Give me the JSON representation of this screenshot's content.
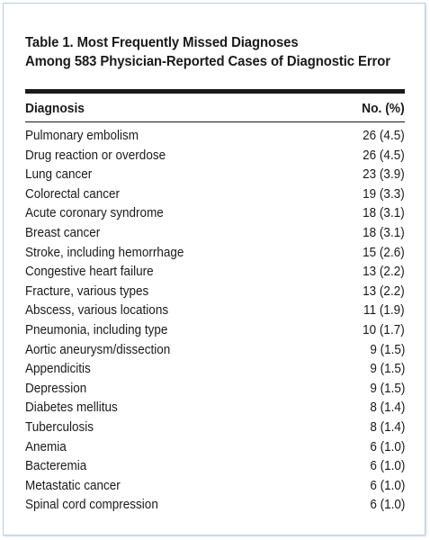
{
  "table": {
    "title_line1": "Table 1. Most Frequently Missed Diagnoses",
    "title_line2": "Among 583 Physician-Reported Cases of Diagnostic Error",
    "col_diagnosis": "Diagnosis",
    "col_number": "No. (%)",
    "rows": [
      {
        "diagnosis": "Pulmonary embolism",
        "count": "26 (4.5)"
      },
      {
        "diagnosis": "Drug reaction or overdose",
        "count": "26 (4.5)"
      },
      {
        "diagnosis": "Lung cancer",
        "count": "23 (3.9)"
      },
      {
        "diagnosis": "Colorectal cancer",
        "count": "19 (3.3)"
      },
      {
        "diagnosis": "Acute coronary syndrome",
        "count": "18 (3.1)"
      },
      {
        "diagnosis": "Breast cancer",
        "count": "18 (3.1)"
      },
      {
        "diagnosis": "Stroke, including hemorrhage",
        "count": "15 (2.6)"
      },
      {
        "diagnosis": "Congestive heart failure",
        "count": "13 (2.2)"
      },
      {
        "diagnosis": "Fracture, various types",
        "count": "13 (2.2)"
      },
      {
        "diagnosis": "Abscess, various locations",
        "count": "11 (1.9)"
      },
      {
        "diagnosis": "Pneumonia, including type",
        "count": "10 (1.7)"
      },
      {
        "diagnosis": "Aortic aneurysm/dissection",
        "count": "9 (1.5)"
      },
      {
        "diagnosis": "Appendicitis",
        "count": "9 (1.5)"
      },
      {
        "diagnosis": "Depression",
        "count": "9 (1.5)"
      },
      {
        "diagnosis": "Diabetes mellitus",
        "count": "8 (1.4)"
      },
      {
        "diagnosis": "Tuberculosis",
        "count": "8 (1.4)"
      },
      {
        "diagnosis": "Anemia",
        "count": "6 (1.0)"
      },
      {
        "diagnosis": "Bacteremia",
        "count": "6 (1.0)"
      },
      {
        "diagnosis": "Metastatic cancer",
        "count": "6 (1.0)"
      },
      {
        "diagnosis": "Spinal cord compression",
        "count": "6 (1.0)"
      }
    ]
  }
}
